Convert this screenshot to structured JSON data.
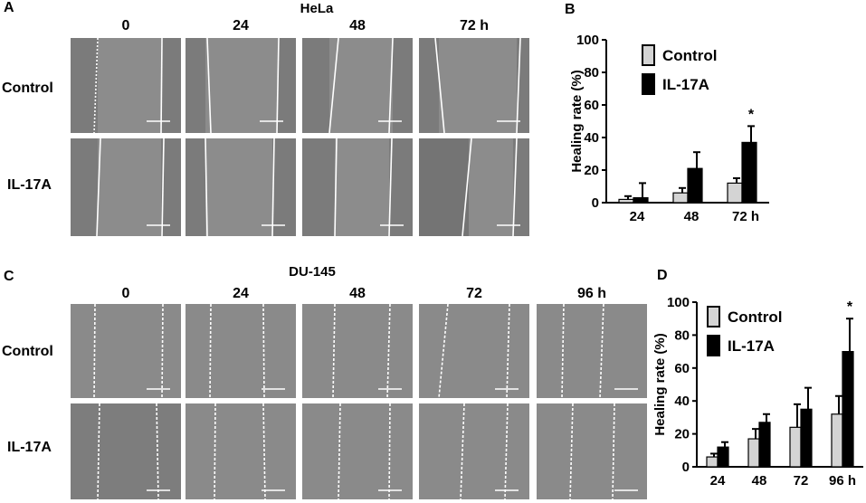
{
  "panel_letters": {
    "A": "A",
    "B": "B",
    "C": "C",
    "D": "D"
  },
  "panel_A": {
    "cell_line": "HeLa",
    "timepoints": [
      "0",
      "24",
      "48",
      "72 h"
    ],
    "rows": [
      "Control",
      "IL-17A"
    ]
  },
  "panel_C": {
    "cell_line": "DU-145",
    "timepoints": [
      "0",
      "24",
      "48",
      "72",
      "96 h"
    ],
    "rows": [
      "Control",
      "IL-17A"
    ]
  },
  "colors": {
    "control": "#d4d4d4",
    "il17a": "#000000",
    "micrograph": "#8c8c8c",
    "scratch_line": "#ffffff"
  },
  "chart_data": [
    {
      "panel": "B",
      "type": "bar",
      "categories": [
        "24",
        "48",
        "72 h"
      ],
      "ylabel": "Healing rate (%)",
      "ylim": [
        0,
        100
      ],
      "yticks": [
        0,
        20,
        40,
        60,
        80,
        100
      ],
      "series": [
        {
          "name": "Control",
          "color": "#d4d4d4",
          "values": [
            2,
            6,
            12
          ],
          "errors": [
            2,
            3,
            3
          ]
        },
        {
          "name": "IL-17A",
          "color": "#000000",
          "values": [
            3,
            21,
            37
          ],
          "errors": [
            9,
            10,
            10
          ]
        }
      ],
      "annotations": [
        {
          "category_index": 2,
          "series_index": 1,
          "text": "*"
        }
      ],
      "legend_position": "top-left"
    },
    {
      "panel": "D",
      "type": "bar",
      "categories": [
        "24",
        "48",
        "72",
        "96 h"
      ],
      "ylabel": "Healing rate (%)",
      "ylim": [
        0,
        100
      ],
      "yticks": [
        0,
        20,
        40,
        60,
        80,
        100
      ],
      "series": [
        {
          "name": "Control",
          "color": "#d4d4d4",
          "values": [
            6,
            17,
            24,
            32
          ],
          "errors": [
            2,
            6,
            14,
            11
          ]
        },
        {
          "name": "IL-17A",
          "color": "#000000",
          "values": [
            12,
            27,
            35,
            70
          ],
          "errors": [
            3,
            5,
            13,
            20
          ]
        }
      ],
      "annotations": [
        {
          "category_index": 3,
          "series_index": 1,
          "text": "*"
        }
      ],
      "legend_position": "top-left"
    }
  ]
}
